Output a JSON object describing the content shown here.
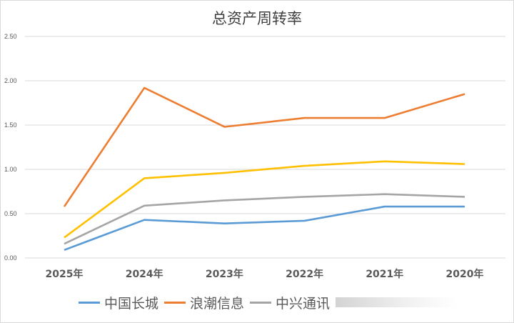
{
  "chart_data": {
    "type": "line",
    "title": "总资产周转率",
    "categories": [
      "2025年",
      "2024年",
      "2023年",
      "2022年",
      "2021年",
      "2020年"
    ],
    "ylim": [
      0,
      2.5
    ],
    "yticks": [
      "0.00",
      "0.50",
      "1.00",
      "1.50",
      "2.00",
      "2.50"
    ],
    "grid": true,
    "legend_position": "bottom",
    "series": [
      {
        "name": "中国长城",
        "color": "#5b9bd5",
        "values": [
          0.09,
          0.43,
          0.39,
          0.42,
          0.58,
          0.58
        ]
      },
      {
        "name": "浪潮信息",
        "color": "#ed7d31",
        "values": [
          0.58,
          1.92,
          1.48,
          1.58,
          1.58,
          1.85
        ]
      },
      {
        "name": "中兴通讯",
        "color": "#a5a5a5",
        "values": [
          0.16,
          0.59,
          0.65,
          0.69,
          0.72,
          0.69
        ]
      },
      {
        "name": "",
        "color": "#ffc000",
        "values": [
          0.23,
          0.9,
          0.96,
          1.04,
          1.09,
          1.06
        ]
      }
    ]
  }
}
